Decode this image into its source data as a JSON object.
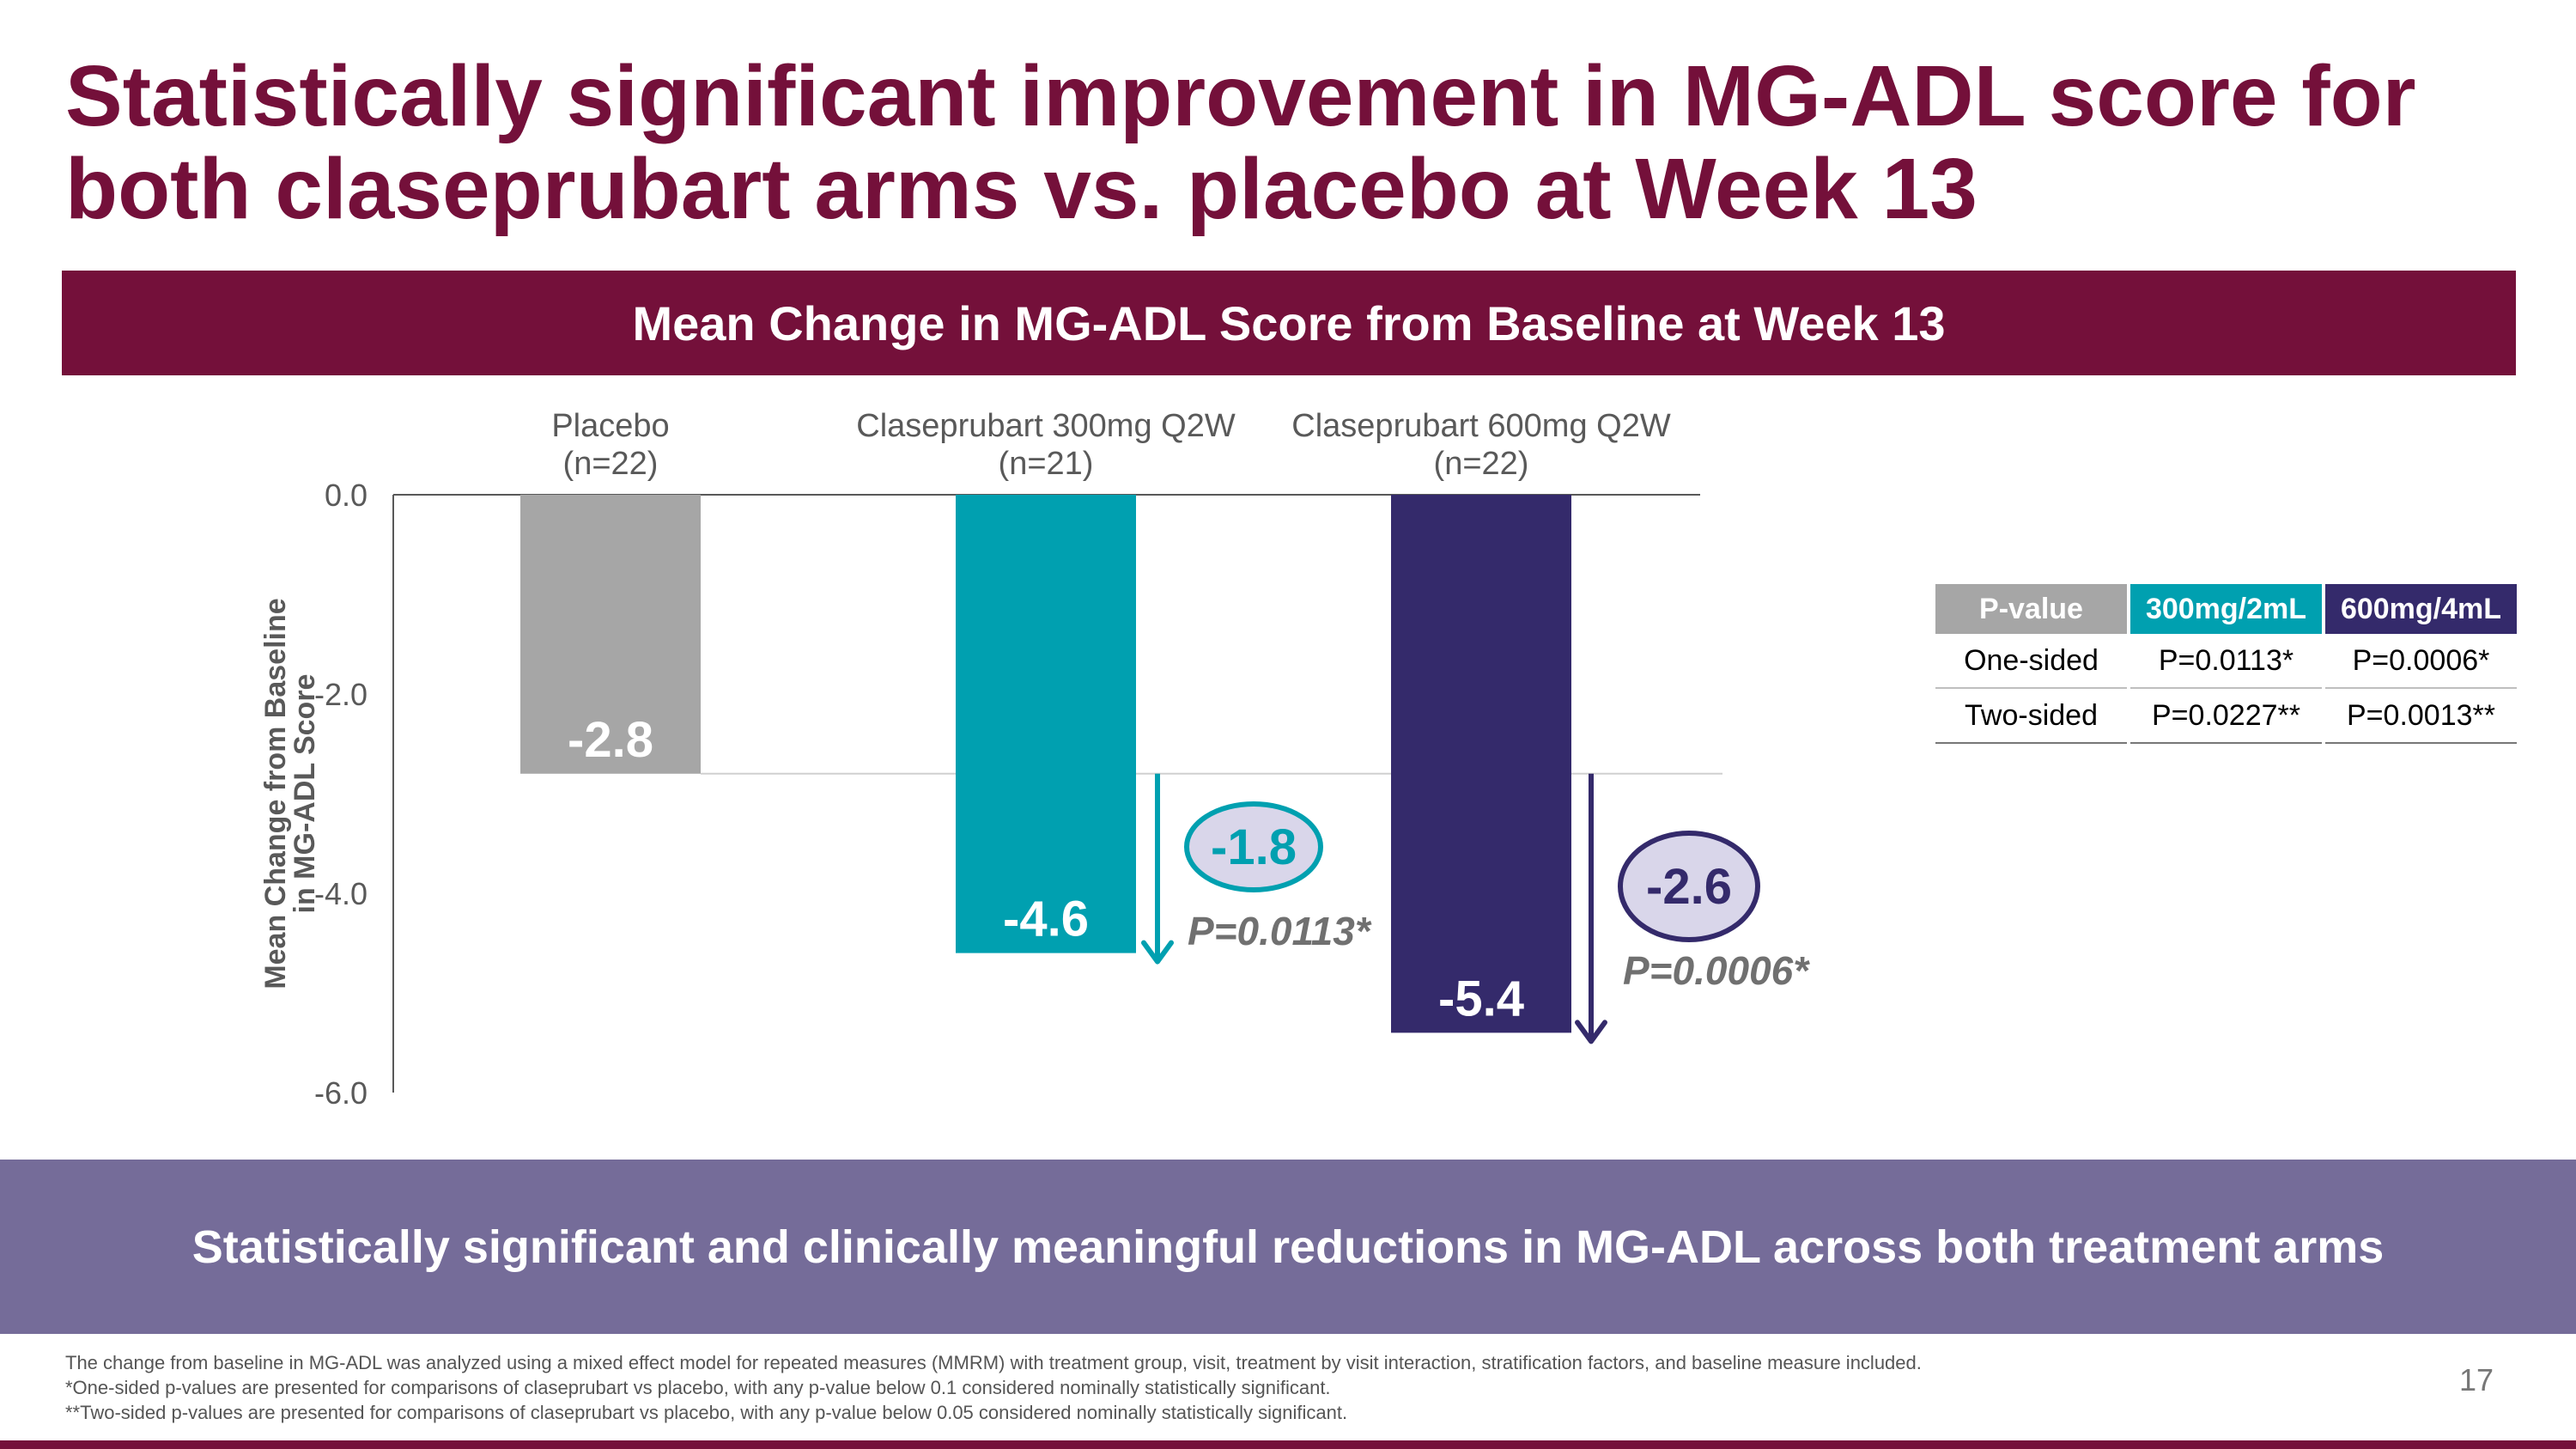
{
  "title": {
    "line1": "Statistically significant improvement in MG-ADL score for",
    "line2": "both claseprubart arms vs. placebo at Week 13"
  },
  "banner": "Mean Change in MG-ADL Score from Baseline at Week 13",
  "chart_data": {
    "type": "bar",
    "title": "Mean Change in MG-ADL Score from Baseline at Week 13",
    "ylabel_lines": [
      "Mean Change from Baseline",
      "in MG-ADL Score"
    ],
    "ylim": [
      -6,
      0
    ],
    "yticks": [
      "0.0",
      "-2.0",
      "-4.0",
      "-6.0"
    ],
    "ytick_values": [
      0,
      -2,
      -4,
      -6
    ],
    "categories": [
      {
        "name": "Placebo",
        "n": "(n=22)"
      },
      {
        "name": "Claseprubart 300mg Q2W",
        "n": "(n=21)"
      },
      {
        "name": "Claseprubart 600mg Q2W",
        "n": "(n=22)"
      }
    ],
    "values": [
      -2.8,
      -4.6,
      -5.4
    ],
    "value_labels": [
      "-2.8",
      "-4.6",
      "-5.4"
    ],
    "colors": [
      "#a6a6a6",
      "#00a0b0",
      "#342a6b"
    ],
    "differences": [
      {
        "label": "-1.8",
        "p": "P=0.0113*",
        "color": "#00a0b0"
      },
      {
        "label": "-2.6",
        "p": "P=0.0006*",
        "color": "#342a6b"
      }
    ],
    "grid": false
  },
  "ptable": {
    "headers": [
      "P-value",
      "300mg/2mL",
      "600mg/4mL"
    ],
    "rows": [
      [
        "One-sided",
        "P=0.0113*",
        "P=0.0006*"
      ],
      [
        "Two-sided",
        "P=0.0227**",
        "P=0.0013**"
      ]
    ]
  },
  "conclusion": "Statistically significant and clinically meaningful reductions in MG-ADL across both treatment arms",
  "footnotes": [
    "The change from baseline in MG-ADL was analyzed using a mixed effect model for repeated measures (MMRM) with treatment group, visit, treatment by visit interaction, stratification factors, and baseline measure included.",
    "*One-sided p-values are presented for comparisons of claseprubart vs placebo, with any p-value below 0.1 considered nominally statistically significant.",
    "**Two-sided p-values are presented for comparisons of claseprubart vs placebo, with any p-value below 0.05 considered nominally statistically significant."
  ],
  "page_number": "17"
}
